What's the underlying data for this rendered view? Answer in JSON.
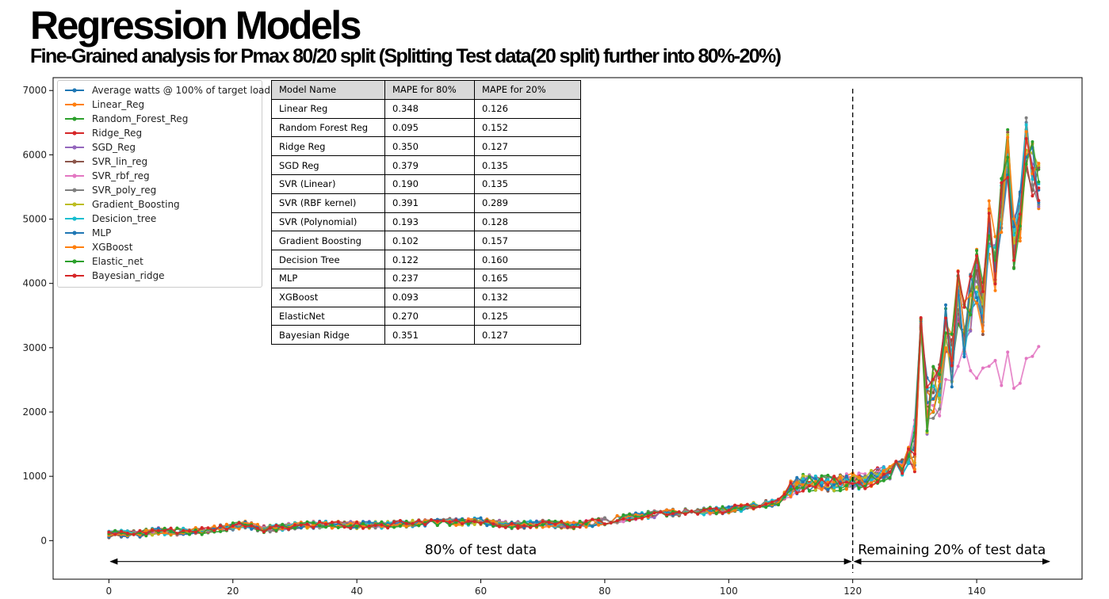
{
  "header": {
    "title": "Regression Models",
    "subtitle": "Fine-Grained analysis for Pmax 80/20 split (Splitting Test data(20 split) further into 80%-20%)"
  },
  "chart_data": {
    "type": "line",
    "xlim": [
      -9,
      157
    ],
    "ylim": [
      -600,
      7200
    ],
    "xticks": [
      0,
      20,
      40,
      60,
      80,
      100,
      120,
      140
    ],
    "yticks": [
      0,
      1000,
      2000,
      3000,
      4000,
      5000,
      6000,
      7000
    ],
    "grid": false,
    "legend_placement": "top-left",
    "split_x": 120,
    "annotations": [
      {
        "text": "80% of test data",
        "x_from": 0,
        "x_to": 120,
        "y": -325
      },
      {
        "text": "Remaining 20% of test data",
        "x_from": 120,
        "x_to": 152,
        "y": -325
      }
    ],
    "series": [
      {
        "name": "Average watts @ 100% of target load",
        "color": "#1f77b4"
      },
      {
        "name": "Linear_Reg",
        "color": "#ff7f0e"
      },
      {
        "name": "Random_Forest_Reg",
        "color": "#2ca02c"
      },
      {
        "name": "Ridge_Reg",
        "color": "#d62728"
      },
      {
        "name": "SGD_Reg",
        "color": "#9467bd"
      },
      {
        "name": "SVR_lin_reg",
        "color": "#8c564b"
      },
      {
        "name": "SVR_rbf_reg",
        "color": "#e377c2"
      },
      {
        "name": "SVR_poly_reg",
        "color": "#7f7f7f"
      },
      {
        "name": "Gradient_Boosting",
        "color": "#bcbd22"
      },
      {
        "name": "Desicion_tree",
        "color": "#17becf"
      },
      {
        "name": "MLP",
        "color": "#1f77b4"
      },
      {
        "name": "XGBoost",
        "color": "#ff7f0e"
      },
      {
        "name": "Elastic_net",
        "color": "#2ca02c"
      },
      {
        "name": "Bayesian_ridge",
        "color": "#d62728"
      }
    ],
    "base_curve": [
      [
        0,
        100
      ],
      [
        5,
        110
      ],
      [
        8,
        150
      ],
      [
        10,
        140
      ],
      [
        15,
        150
      ],
      [
        20,
        220
      ],
      [
        22,
        250
      ],
      [
        25,
        180
      ],
      [
        30,
        230
      ],
      [
        35,
        250
      ],
      [
        40,
        240
      ],
      [
        45,
        250
      ],
      [
        50,
        270
      ],
      [
        55,
        290
      ],
      [
        60,
        300
      ],
      [
        65,
        240
      ],
      [
        70,
        260
      ],
      [
        75,
        240
      ],
      [
        80,
        300
      ],
      [
        85,
        380
      ],
      [
        90,
        430
      ],
      [
        95,
        450
      ],
      [
        100,
        480
      ],
      [
        105,
        560
      ],
      [
        108,
        600
      ],
      [
        110,
        800
      ],
      [
        112,
        900
      ],
      [
        115,
        880
      ],
      [
        118,
        900
      ],
      [
        120,
        920
      ],
      [
        122,
        930
      ],
      [
        125,
        1050
      ],
      [
        128,
        1150
      ],
      [
        130,
        1500
      ],
      [
        131,
        3500
      ],
      [
        132,
        2100
      ],
      [
        133,
        2350
      ],
      [
        134,
        2300
      ],
      [
        135,
        3300
      ],
      [
        136,
        2800
      ],
      [
        137,
        3800
      ],
      [
        138,
        3300
      ],
      [
        139,
        3700
      ],
      [
        140,
        4100
      ],
      [
        141,
        3600
      ],
      [
        142,
        4900
      ],
      [
        143,
        4300
      ],
      [
        144,
        5200
      ],
      [
        145,
        6000
      ],
      [
        146,
        4600
      ],
      [
        147,
        5000
      ],
      [
        148,
        6200
      ],
      [
        149,
        5800
      ],
      [
        150,
        5500
      ]
    ],
    "table": {
      "columns": [
        "Model Name",
        "MAPE for 80%",
        "MAPE for 20%"
      ],
      "rows": [
        [
          "Linear Reg",
          "0.348",
          "0.126"
        ],
        [
          "Random Forest Reg",
          "0.095",
          "0.152"
        ],
        [
          "Ridge Reg",
          "0.350",
          "0.127"
        ],
        [
          "SGD Reg",
          "0.379",
          "0.135"
        ],
        [
          "SVR (Linear)",
          "0.190",
          "0.135"
        ],
        [
          "SVR (RBF kernel)",
          "0.391",
          "0.289"
        ],
        [
          "SVR (Polynomial)",
          "0.193",
          "0.128"
        ],
        [
          "Gradient Boosting",
          "0.102",
          "0.157"
        ],
        [
          "Decision Tree",
          "0.122",
          "0.160"
        ],
        [
          "MLP",
          "0.237",
          "0.165"
        ],
        [
          "XGBoost",
          "0.093",
          "0.132"
        ],
        [
          "ElasticNet",
          "0.270",
          "0.125"
        ],
        [
          "Bayesian Ridge",
          "0.351",
          "0.127"
        ]
      ]
    }
  }
}
